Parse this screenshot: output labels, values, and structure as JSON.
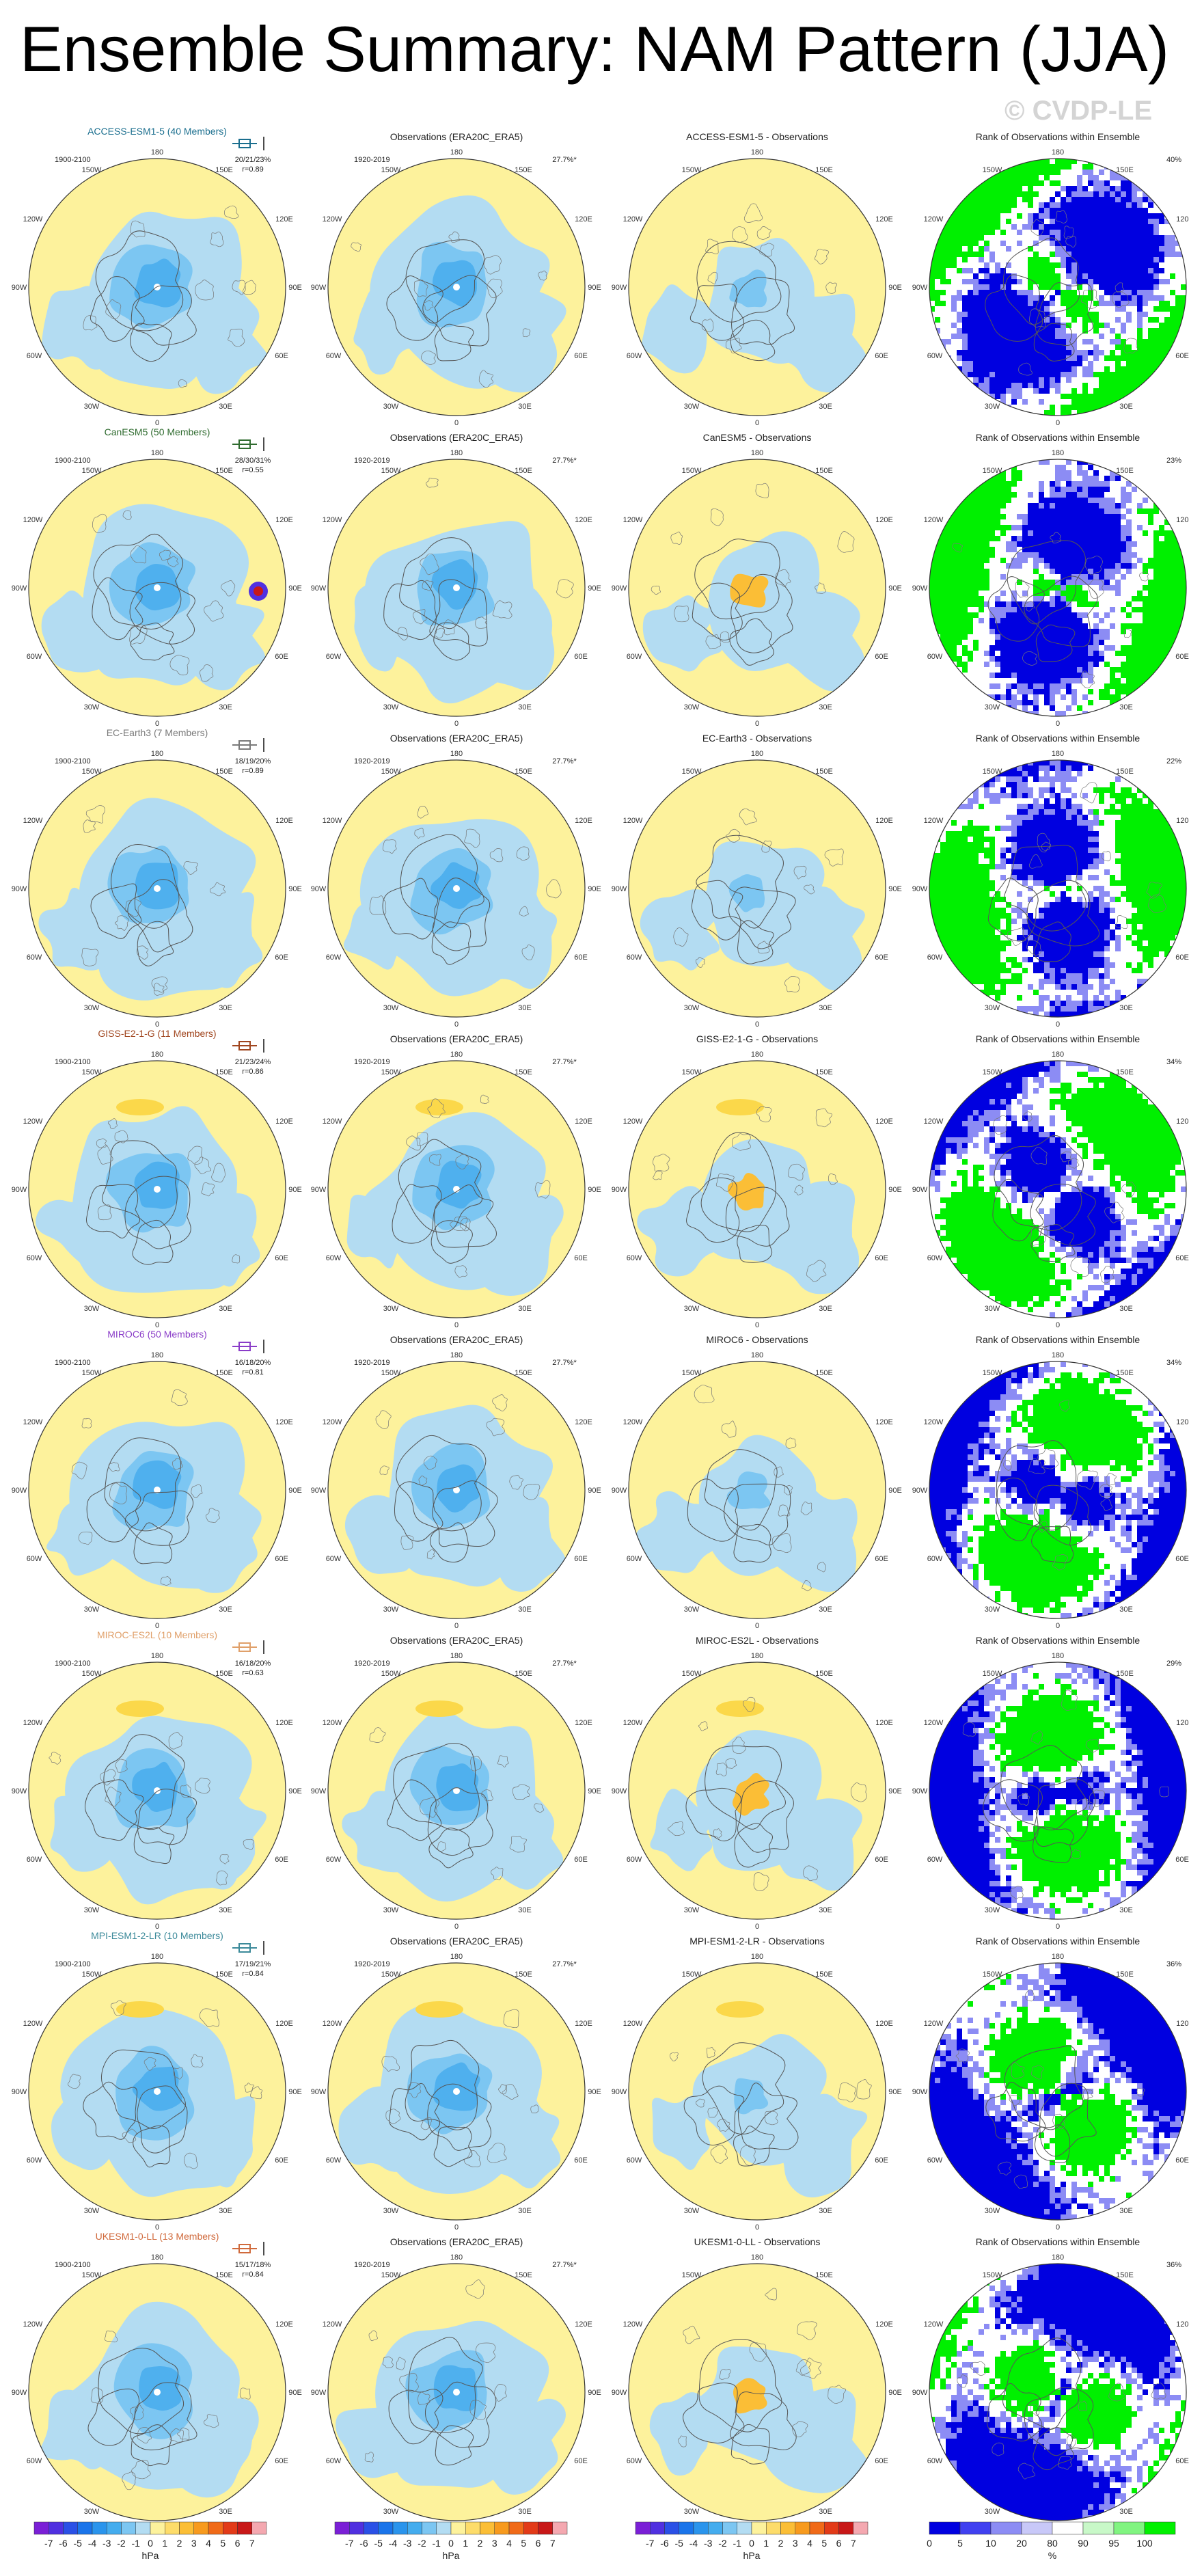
{
  "figure_title": "Ensemble Summary: NAM Pattern (JJA)",
  "watermark": "© CVDP-LE",
  "colors": {
    "ocean_light_blue": "#b3dcf2",
    "positive_yellow": "#fdf29c",
    "negative_blue": "#4fb0ee",
    "negative_deep": "#2a8fe0",
    "rank_low_blue": "#0000e0",
    "rank_high_green": "#00f000",
    "rank_mid_white": "#ffffff"
  },
  "column_headers": {
    "obs": "Observations (ERA20C_ERA5)",
    "obs_years": "1920-2019",
    "obs_pct": "27.7%*",
    "rank": "Rank of Observations within Ensemble"
  },
  "longitude_labels": {
    "top": "180",
    "bottom": "0",
    "upper_left": "150W",
    "upper_right": "150E",
    "mid_upper_left": "120W",
    "mid_upper_right": "120E",
    "left": "90W",
    "right": "90E",
    "mid_lower_left": "60W",
    "mid_lower_right": "60E",
    "lower_left": "30W",
    "lower_right": "30E"
  },
  "chart_data": {
    "type": "map",
    "title": "Ensemble Summary: NAM Pattern (JJA)",
    "rows": [
      {
        "model": "ACCESS-ESM1-5 (40 Members)",
        "model_short": "ACCESS-ESM1-5",
        "color": "#1a6e8e",
        "years": "1900-2100",
        "stats": "20/21/23%",
        "r": "r=0.89",
        "diff_title": "ACCESS-ESM1-5 - Observations",
        "rank_pct": "40%"
      },
      {
        "model": "CanESM5 (50 Members)",
        "model_short": "CanESM5",
        "color": "#2f6b2f",
        "years": "1900-2100",
        "stats": "28/30/31%",
        "r": "r=0.55",
        "diff_title": "CanESM5 - Observations",
        "rank_pct": "23%"
      },
      {
        "model": "EC-Earth3 (7 Members)",
        "model_short": "EC-Earth3",
        "color": "#7a7a7a",
        "years": "1900-2100",
        "stats": "18/19/20%",
        "r": "r=0.89",
        "diff_title": "EC-Earth3 - Observations",
        "rank_pct": "22%"
      },
      {
        "model": "GISS-E2-1-G (11 Members)",
        "model_short": "GISS-E2-1-G",
        "color": "#a0451e",
        "years": "1900-2100",
        "stats": "21/23/24%",
        "r": "r=0.86",
        "diff_title": "GISS-E2-1-G - Observations",
        "rank_pct": "34%"
      },
      {
        "model": "MIROC6 (50 Members)",
        "model_short": "MIROC6",
        "color": "#8a3cc8",
        "years": "1900-2100",
        "stats": "16/18/20%",
        "r": "r=0.81",
        "diff_title": "MIROC6 - Observations",
        "rank_pct": "34%"
      },
      {
        "model": "MIROC-ES2L (10 Members)",
        "model_short": "MIROC-ES2L",
        "color": "#e0a06a",
        "years": "1900-2100",
        "stats": "16/18/20%",
        "r": "r=0.63",
        "diff_title": "MIROC-ES2L - Observations",
        "rank_pct": "29%"
      },
      {
        "model": "MPI-ESM1-2-LR (10 Members)",
        "model_short": "MPI-ESM1-2-LR",
        "color": "#3c8a9a",
        "years": "1900-2100",
        "stats": "17/19/21%",
        "r": "r=0.84",
        "diff_title": "MPI-ESM1-2-LR - Observations",
        "rank_pct": "36%"
      },
      {
        "model": "UKESM1-0-LL (13 Members)",
        "model_short": "UKESM1-0-LL",
        "color": "#d06a3c",
        "years": "1900-2100",
        "stats": "15/17/18%",
        "r": "r=0.84",
        "diff_title": "UKESM1-0-LL - Observations",
        "rank_pct": "36%"
      }
    ],
    "colorbar_hpa": {
      "unit": "hPa",
      "ticks": [
        "-7",
        "-6",
        "-5",
        "-4",
        "-3",
        "-2",
        "-1",
        "0",
        "1",
        "2",
        "3",
        "4",
        "5",
        "6",
        "7"
      ],
      "colors": [
        "#7a1fd6",
        "#5030e0",
        "#2a50e6",
        "#1a74ea",
        "#2a94ec",
        "#44acee",
        "#7cc6f2",
        "#b3dcf2",
        "#fdf29c",
        "#fddc6a",
        "#fbbe36",
        "#f79a1e",
        "#f06a18",
        "#e23a18",
        "#c81818",
        "#f4a8b0"
      ]
    },
    "colorbar_rank": {
      "unit": "%",
      "ticks": [
        "0",
        "5",
        "10",
        "20",
        "80",
        "90",
        "95",
        "100"
      ],
      "colors": [
        "#0000e0",
        "#4040f0",
        "#8c8cf4",
        "#c8c8f8",
        "#ffffff",
        "#c8f8c8",
        "#80f480",
        "#00f000"
      ]
    }
  }
}
